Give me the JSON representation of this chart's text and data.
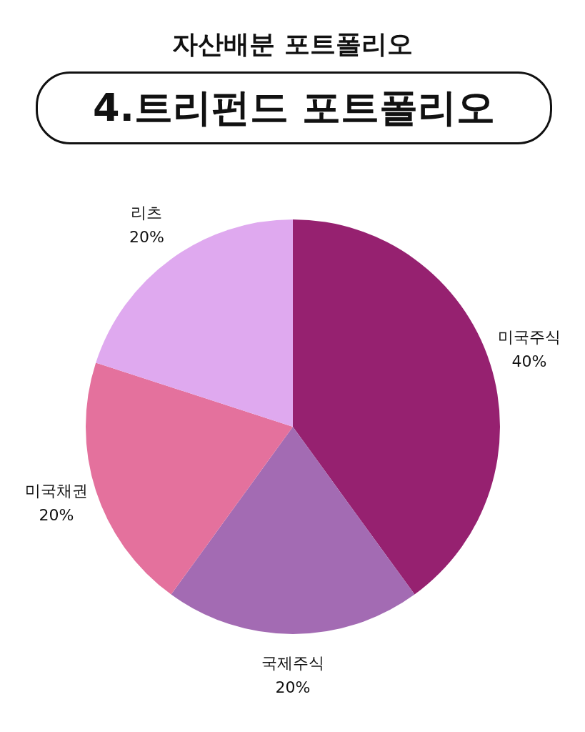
{
  "chart_data": {
    "type": "pie",
    "title": "자산배분 포트폴리오",
    "subtitle": "4.트리펀드 포트폴리오",
    "categories": [
      "미국주식",
      "국제주식",
      "미국채권",
      "리츠"
    ],
    "values": [
      40,
      20,
      20,
      20
    ],
    "colors": [
      "#962170",
      "#a36bb3",
      "#e4719d",
      "#dfa9ef"
    ],
    "value_labels": [
      "40%",
      "20%",
      "20%",
      "20%"
    ],
    "legend": false
  }
}
